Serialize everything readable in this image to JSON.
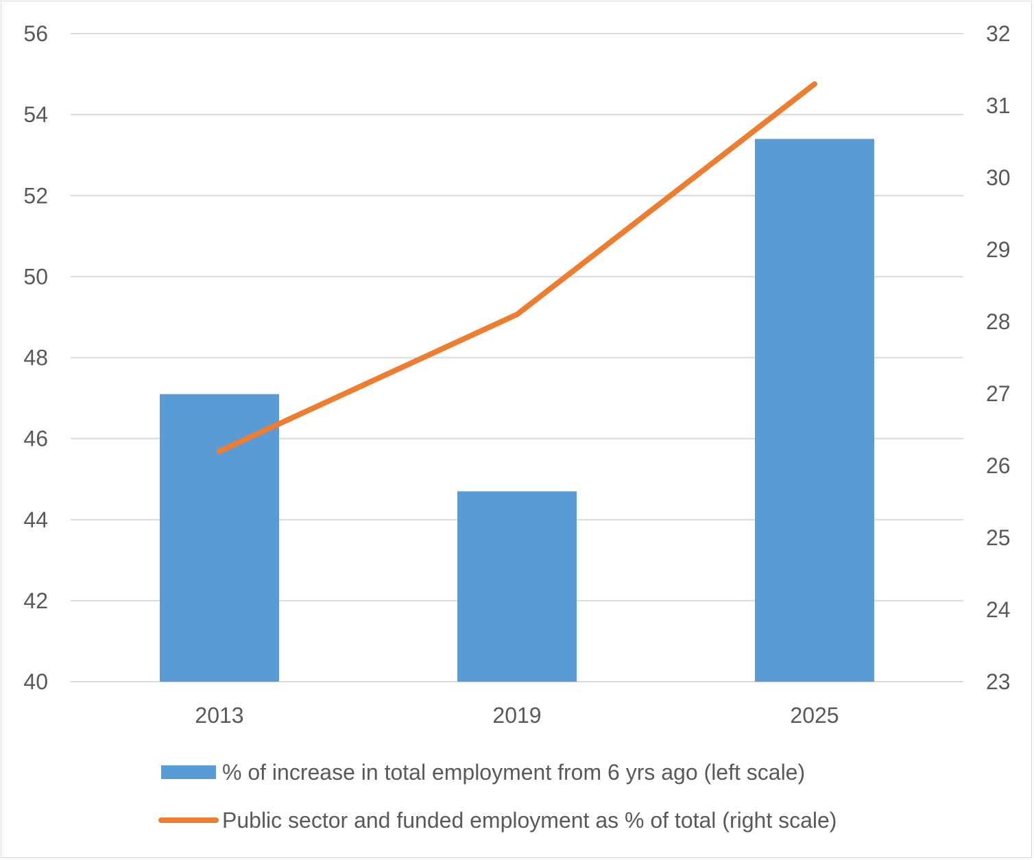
{
  "chart_data": {
    "type": "bar",
    "categories": [
      "2013",
      "2019",
      "2025"
    ],
    "series": [
      {
        "name": "% of increase in total employment from 6 yrs ago (left scale)",
        "type": "bar",
        "axis": "left",
        "color": "#5b9bd5",
        "values": [
          47.1,
          44.7,
          53.4
        ]
      },
      {
        "name": "Public sector and funded employment as % of total (right scale)",
        "type": "line",
        "axis": "right",
        "color": "#ed7d31",
        "values": [
          26.2,
          28.1,
          31.3
        ]
      }
    ],
    "y_left": {
      "lim": [
        40,
        56
      ],
      "ticks": [
        "40",
        "42",
        "44",
        "46",
        "48",
        "50",
        "52",
        "54",
        "56"
      ]
    },
    "y_right": {
      "lim": [
        23,
        32
      ],
      "ticks": [
        "23",
        "24",
        "25",
        "26",
        "27",
        "28",
        "29",
        "30",
        "31",
        "32"
      ]
    },
    "grid": true,
    "legend": "bottom",
    "gridline_color": "#d9d9d9",
    "text_color": "#595959"
  }
}
